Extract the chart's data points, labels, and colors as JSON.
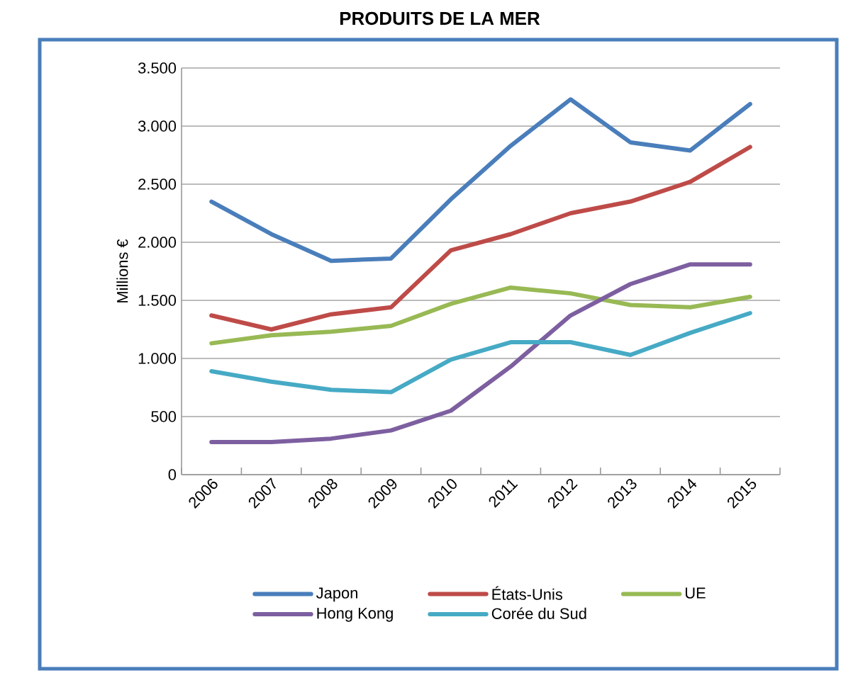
{
  "chart_data": {
    "type": "line",
    "title": "PRODUITS DE LA MER",
    "ylabel": "Millions €",
    "categories": [
      "2006",
      "2007",
      "2008",
      "2009",
      "2010",
      "2011",
      "2012",
      "2013",
      "2014",
      "2015"
    ],
    "series": [
      {
        "name": "Japon",
        "color": "#4a7ebb",
        "values": [
          2350,
          2070,
          1840,
          1860,
          2370,
          2830,
          3230,
          2860,
          2790,
          3190
        ]
      },
      {
        "name": "États-Unis",
        "color": "#be4b48",
        "values": [
          1370,
          1250,
          1380,
          1440,
          1930,
          2070,
          2250,
          2350,
          2520,
          2820
        ]
      },
      {
        "name": "UE",
        "color": "#98b954",
        "values": [
          1130,
          1200,
          1230,
          1280,
          1470,
          1610,
          1560,
          1460,
          1440,
          1530
        ]
      },
      {
        "name": "Hong Kong",
        "color": "#7d5fa0",
        "values": [
          280,
          280,
          310,
          380,
          550,
          930,
          1370,
          1640,
          1810,
          1810
        ]
      },
      {
        "name": "Corée du Sud",
        "color": "#46aac5",
        "values": [
          890,
          800,
          730,
          710,
          990,
          1140,
          1140,
          1030,
          1220,
          1390
        ]
      }
    ],
    "ylim": [
      0,
      3500
    ],
    "yticks": [
      0,
      500,
      {
        "value": 1000,
        "label": "1.000"
      },
      {
        "value": 1500,
        "label": "1.500"
      },
      {
        "value": 2000,
        "label": "2.000"
      },
      {
        "value": 2500,
        "label": "2.500"
      },
      {
        "value": 3000,
        "label": "3.000"
      },
      {
        "value": 3500,
        "label": "3.500"
      }
    ],
    "grid": "y",
    "legend": "bottom",
    "marker": "none",
    "line_style": "solid"
  }
}
